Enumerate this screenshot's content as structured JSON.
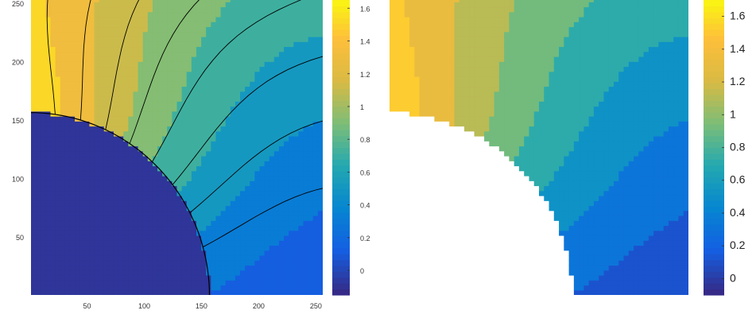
{
  "chart_data": [
    {
      "type": "heatmap",
      "title": "",
      "xlabel": "",
      "ylabel": "",
      "xlim": [
        1,
        256
      ],
      "ylim": [
        1,
        256
      ],
      "x_ticks": [
        50,
        100,
        150,
        200,
        250
      ],
      "y_ticks": [
        50,
        100,
        150,
        200,
        250
      ],
      "contour_lines": true,
      "colorbar": {
        "range": [
          -0.15,
          1.65
        ],
        "ticks": [
          0,
          0.2,
          0.4,
          0.6,
          0.8,
          1,
          1.2,
          1.4,
          1.6
        ],
        "tick_labels": [
          "0",
          "0.2",
          "0.4",
          "0.6",
          "0.8",
          "1",
          "1.2",
          "1.4",
          "1.6"
        ]
      },
      "hole": {
        "shape": "quarter-circle",
        "center": [
          0,
          0
        ],
        "radius": 157,
        "value": -0.1
      },
      "grid": false
    },
    {
      "type": "heatmap",
      "title": "",
      "xlim": [
        1,
        256
      ],
      "ylim": [
        1,
        256
      ],
      "contour_lines": false,
      "colorbar": {
        "range": [
          -0.1,
          1.7
        ],
        "ticks": [
          0,
          0.2,
          0.4,
          0.6,
          0.8,
          1,
          1.2,
          1.4,
          1.6
        ],
        "tick_labels": [
          "0",
          "0.2",
          "0.4",
          "0.6",
          "0.8",
          "1",
          "1.2",
          "1.4",
          "1.6"
        ]
      },
      "hole": {
        "shape": "quarter-circle",
        "center": [
          0,
          0
        ],
        "radius": 157,
        "value": "blank"
      },
      "grid": false
    }
  ]
}
